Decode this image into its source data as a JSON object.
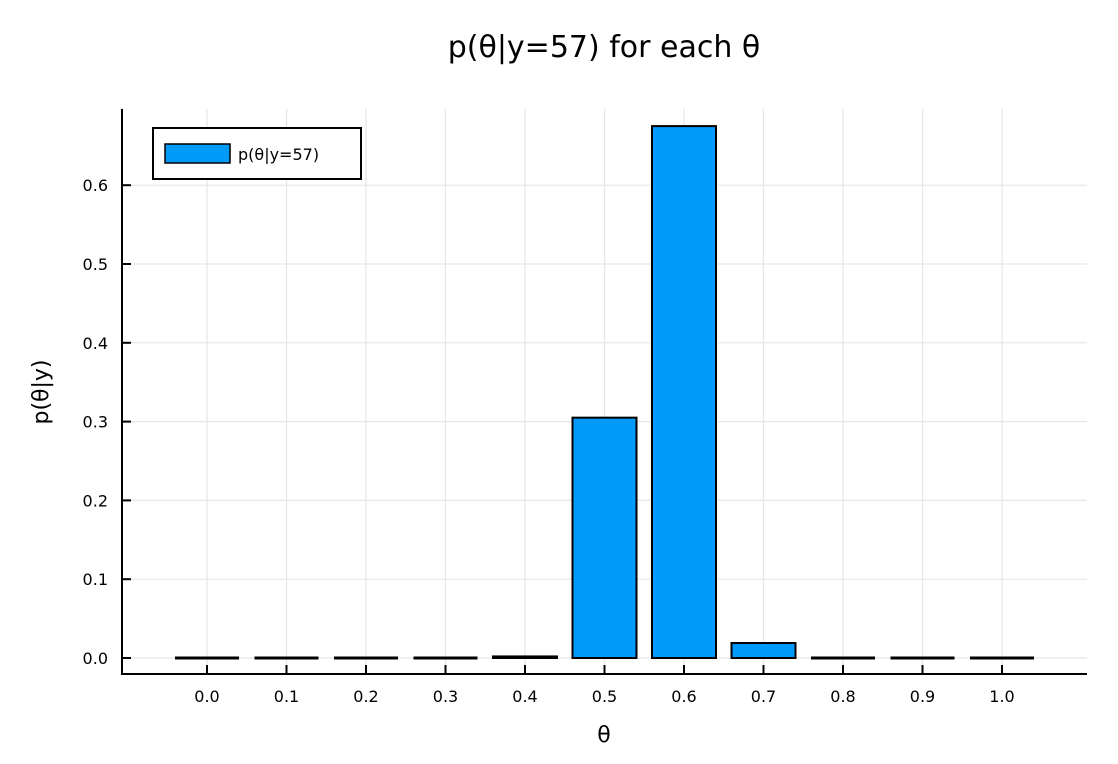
{
  "chart_data": {
    "type": "bar",
    "title": "p(θ|y=57) for each θ",
    "xlabel": "θ",
    "ylabel": "p(θ|y)",
    "categories": [
      "0.0",
      "0.1",
      "0.2",
      "0.3",
      "0.4",
      "0.5",
      "0.6",
      "0.7",
      "0.8",
      "0.9",
      "1.0"
    ],
    "x": [
      0.0,
      0.1,
      0.2,
      0.3,
      0.4,
      0.5,
      0.6,
      0.7,
      0.8,
      0.9,
      1.0
    ],
    "series": [
      {
        "name": "p(θ|y=57)",
        "color": "#009AFA",
        "values": [
          0.0,
          0.0,
          0.0,
          0.0,
          0.002,
          0.305,
          0.675,
          0.019,
          0.0,
          0.0,
          0.0
        ]
      }
    ],
    "yticks": [
      0.0,
      0.1,
      0.2,
      0.3,
      0.4,
      0.5,
      0.6
    ],
    "ytick_labels": [
      "0.0",
      "0.1",
      "0.2",
      "0.3",
      "0.4",
      "0.5",
      "0.6"
    ],
    "xlim": [
      -0.115,
      1.1
    ],
    "ylim": [
      -0.02,
      0.7
    ],
    "grid": true,
    "legend_position": "top-left"
  },
  "legend": {
    "label": "p(θ|y=57)"
  }
}
